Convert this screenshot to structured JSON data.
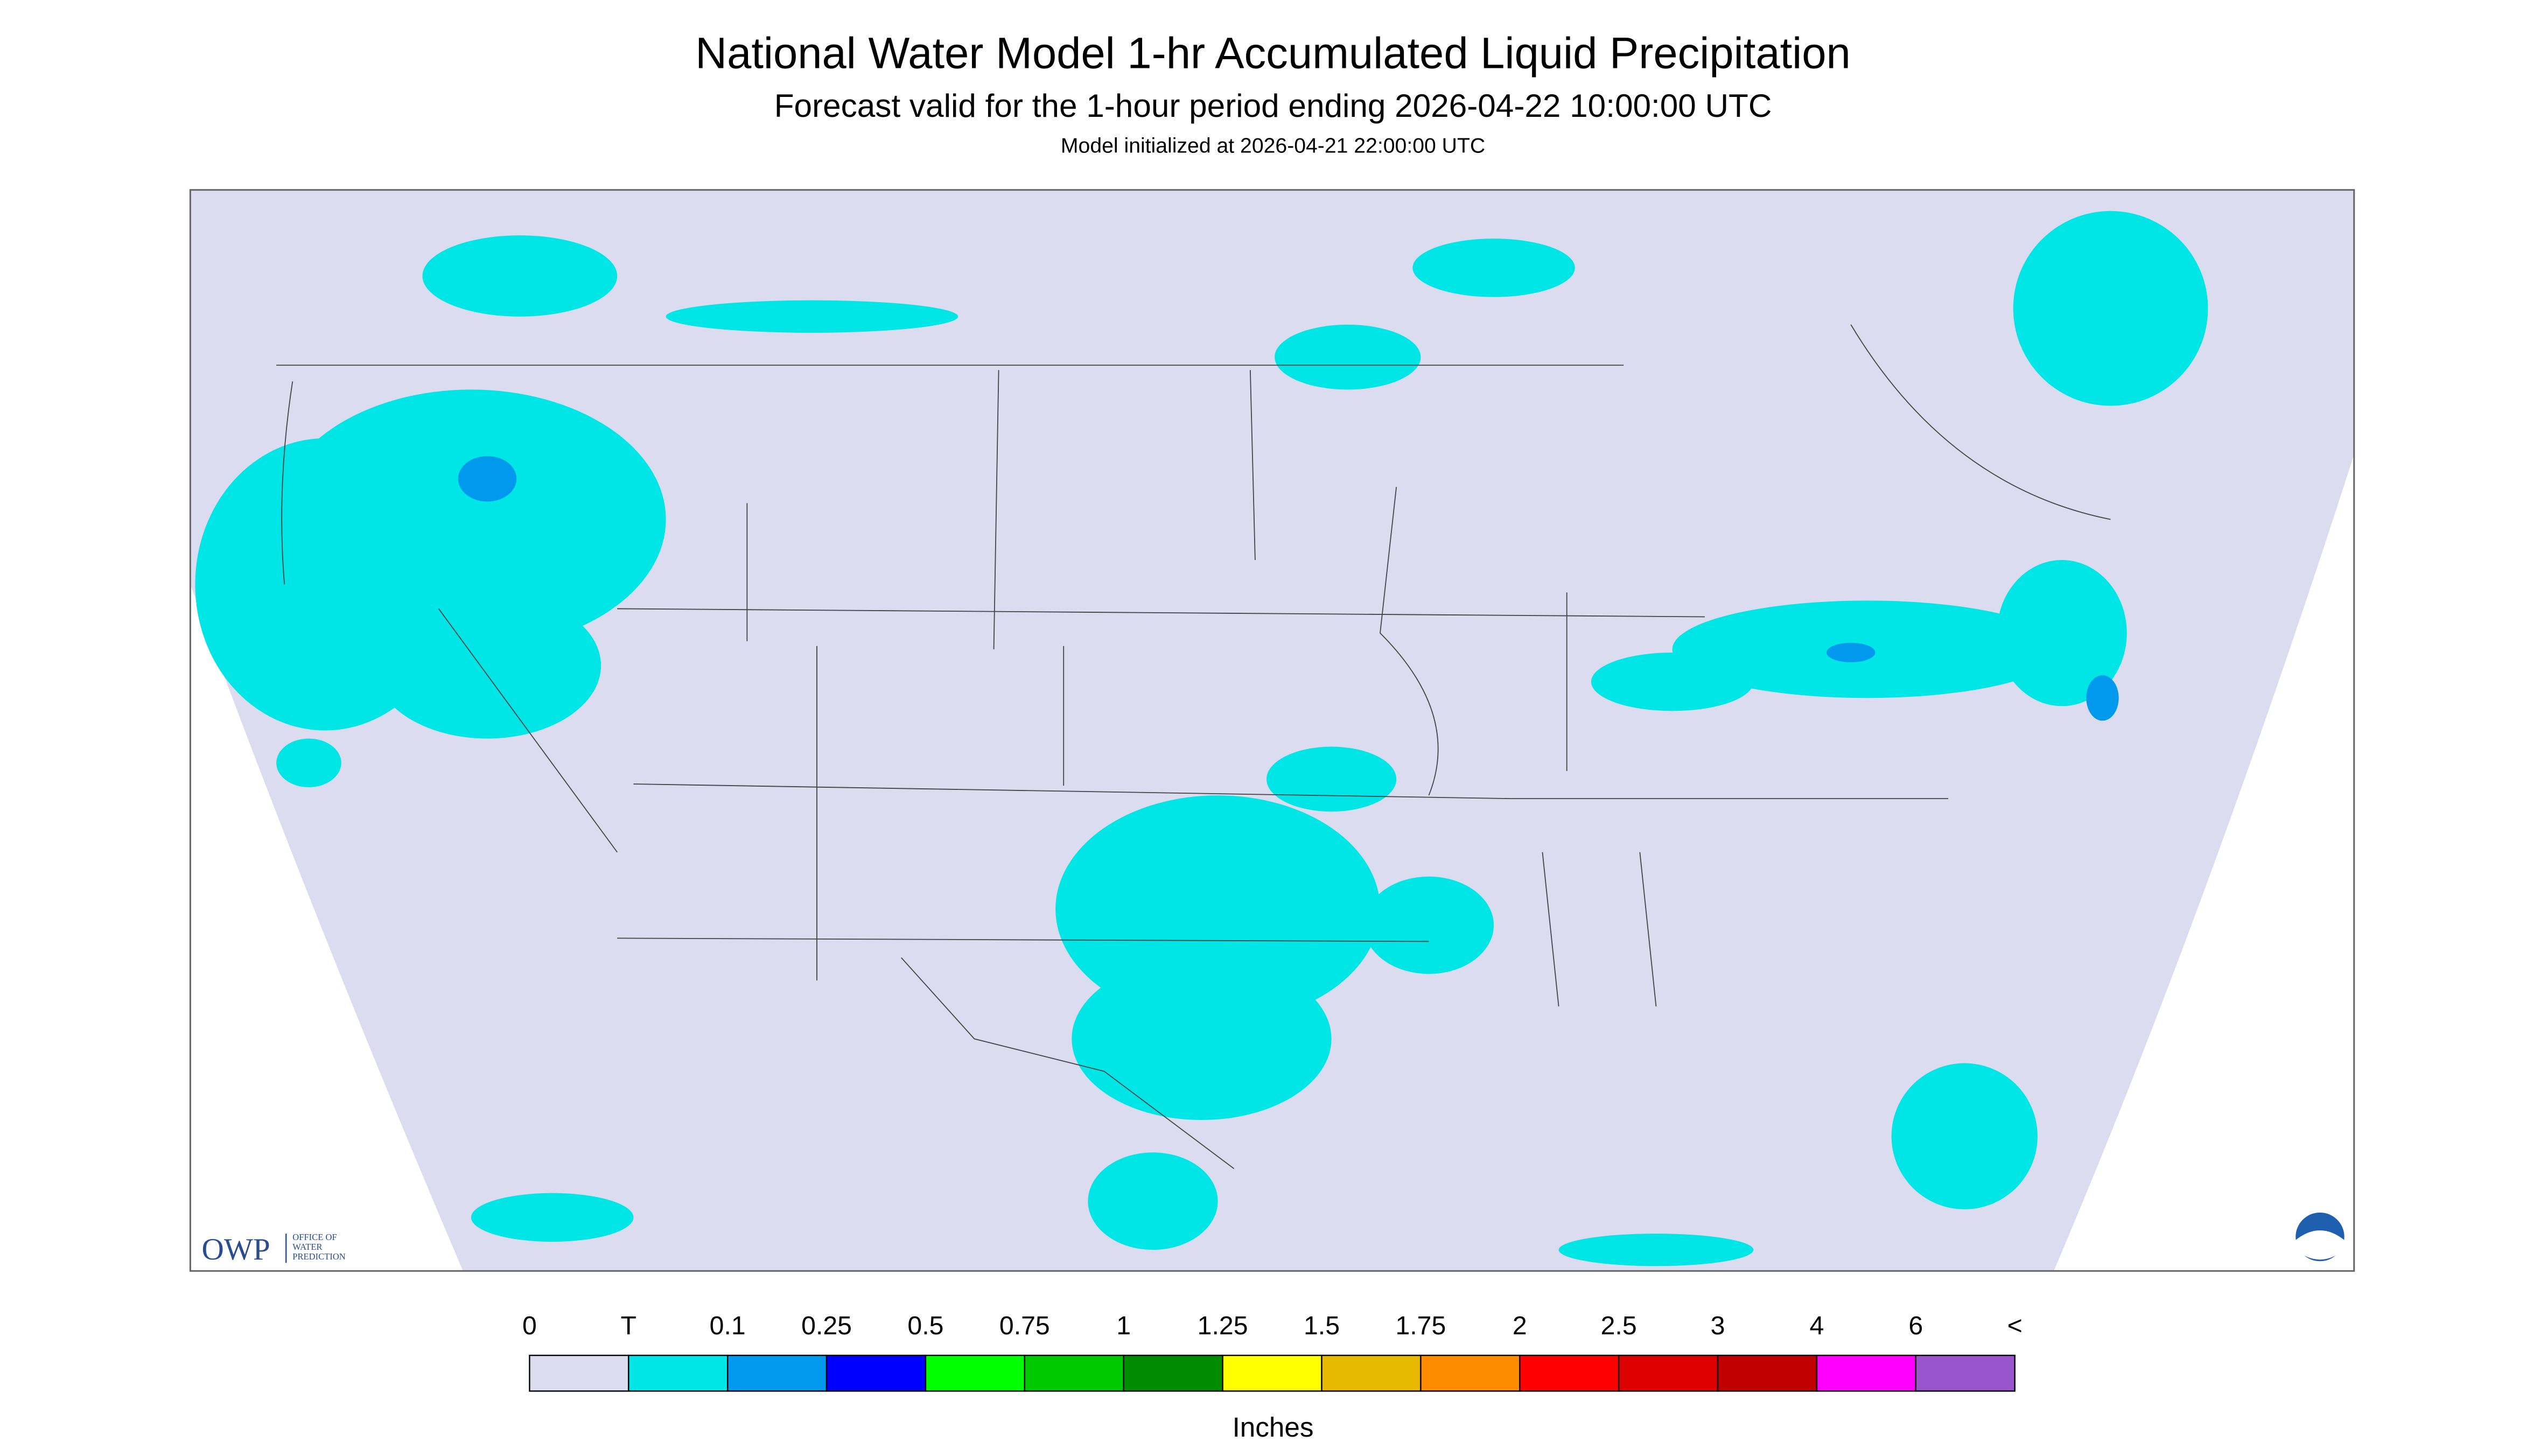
{
  "header": {
    "title": "National Water Model 1-hr Accumulated Liquid Precipitation",
    "subtitle": "Forecast valid for the 1-hour period ending 2026-04-22 10:00:00 UTC",
    "init": "Model initialized at 2026-04-21 22:00:00 UTC"
  },
  "logo": {
    "mark": "OWP",
    "lines": [
      "OFFICE OF",
      "WATER",
      "PREDICTION"
    ]
  },
  "legend": {
    "labels": [
      "0",
      "T",
      "0.1",
      "0.25",
      "0.5",
      "0.75",
      "1",
      "1.25",
      "1.5",
      "1.75",
      "2",
      "2.5",
      "3",
      "4",
      "6",
      "<"
    ],
    "colors": [
      "#dcdcf0",
      "#00e6e6",
      "#0099ee",
      "#0000ff",
      "#00ff00",
      "#00c800",
      "#008c00",
      "#ffff00",
      "#e6b800",
      "#ff8c00",
      "#ff0000",
      "#dd0000",
      "#c00000",
      "#ff00ff",
      "#9955cc"
    ],
    "unit": "Inches"
  }
}
